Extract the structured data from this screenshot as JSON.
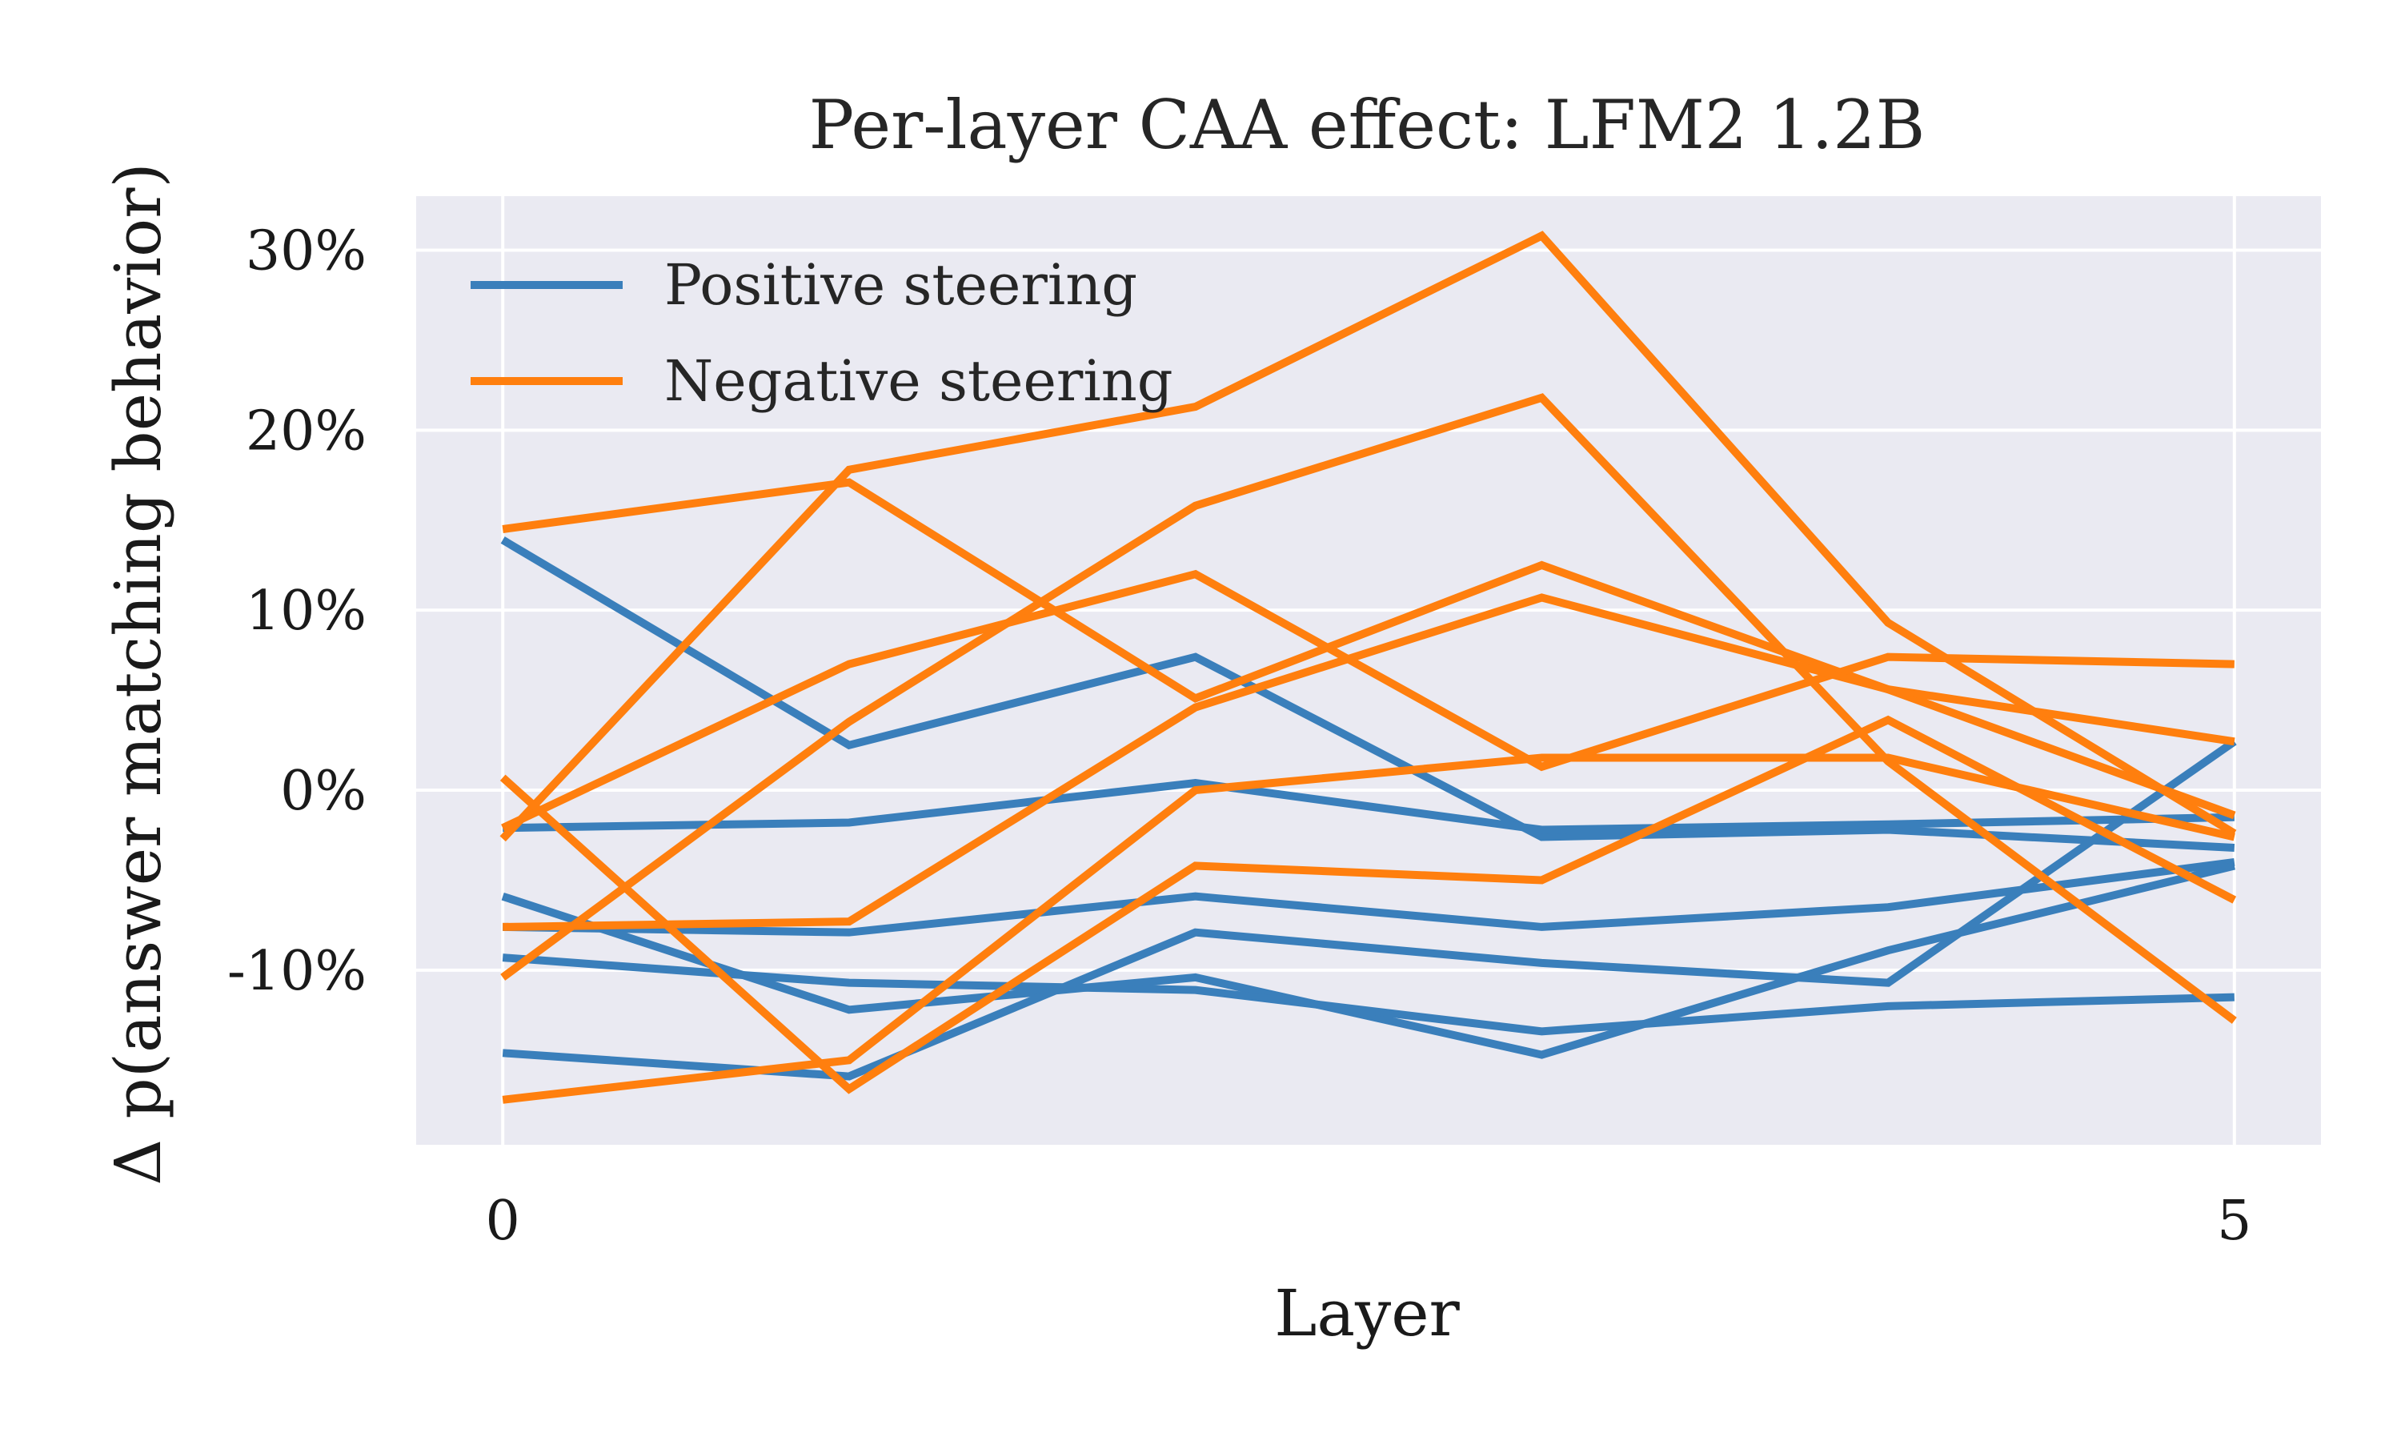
{
  "chart_data": {
    "type": "line",
    "title": "Per-layer CAA effect: LFM2 1.2B",
    "xlabel": "Layer",
    "ylabel": "Δ p(answer matching behavior)",
    "xlim": [
      -0.25,
      5.25
    ],
    "ylim": [
      -19.7,
      33
    ],
    "x": [
      0,
      1,
      2,
      3,
      4,
      5
    ],
    "x_ticks": [
      0,
      5
    ],
    "x_tick_labels": [
      "0",
      "5"
    ],
    "y_ticks": [
      -10,
      0,
      10,
      20,
      30
    ],
    "y_tick_labels": [
      "-10%",
      "0%",
      "10%",
      "20%",
      "30%"
    ],
    "grid": true,
    "background": "#eaeaf2",
    "legend": {
      "position": "top-left",
      "entries": [
        {
          "label": "Positive steering",
          "color": "#3a7fbb"
        },
        {
          "label": "Negative steering",
          "color": "#ff7f0e"
        }
      ]
    },
    "series": [
      {
        "group": "Positive steering",
        "color": "#3a7fbb",
        "values": [
          13.9,
          2.5,
          7.4,
          -2.6,
          -2.2,
          -3.2
        ]
      },
      {
        "group": "Positive steering",
        "color": "#3a7fbb",
        "values": [
          -2.1,
          -1.8,
          0.4,
          -2.2,
          -1.9,
          -1.5
        ]
      },
      {
        "group": "Positive steering",
        "color": "#3a7fbb",
        "values": [
          -7.6,
          -7.9,
          -5.9,
          -7.6,
          -6.5,
          -4.0
        ]
      },
      {
        "group": "Positive steering",
        "color": "#3a7fbb",
        "values": [
          -5.9,
          -12.2,
          -10.4,
          -14.7,
          -8.9,
          -4.2
        ]
      },
      {
        "group": "Positive steering",
        "color": "#3a7fbb",
        "values": [
          -9.3,
          -10.7,
          -11.1,
          -13.4,
          -12.0,
          -11.5
        ]
      },
      {
        "group": "Positive steering",
        "color": "#3a7fbb",
        "values": [
          -14.6,
          -15.9,
          -7.9,
          -9.6,
          -10.7,
          2.7
        ]
      },
      {
        "group": "Negative steering",
        "color": "#ff7f0e",
        "values": [
          -2.7,
          17.8,
          21.3,
          30.8,
          9.3,
          -2.4
        ]
      },
      {
        "group": "Negative steering",
        "color": "#ff7f0e",
        "values": [
          -10.4,
          3.8,
          15.8,
          21.8,
          1.6,
          -12.8
        ]
      },
      {
        "group": "Negative steering",
        "color": "#ff7f0e",
        "values": [
          14.5,
          17.1,
          5.1,
          12.5,
          5.6,
          -1.4
        ]
      },
      {
        "group": "Negative steering",
        "color": "#ff7f0e",
        "values": [
          -2.1,
          7.0,
          12.0,
          1.3,
          7.4,
          7.0
        ]
      },
      {
        "group": "Negative steering",
        "color": "#ff7f0e",
        "values": [
          -7.6,
          -7.3,
          4.6,
          10.7,
          5.6,
          2.7
        ]
      },
      {
        "group": "Negative steering",
        "color": "#ff7f0e",
        "values": [
          0.7,
          -16.6,
          -4.2,
          -5.0,
          3.9,
          -6.1
        ]
      },
      {
        "group": "Negative steering",
        "color": "#ff7f0e",
        "values": [
          -17.2,
          -15.0,
          0.0,
          1.8,
          1.8,
          -2.6
        ]
      }
    ]
  }
}
